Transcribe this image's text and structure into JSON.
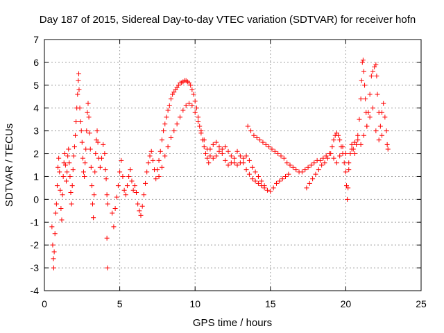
{
  "chart_data": {
    "type": "scatter",
    "title": "Day 187 of 2015, Sidereal Day-to-day VTEC variation (SDTVAR) for receiver hofn",
    "xlabel": "GPS time / hours",
    "ylabel": "SDTVAR / TECUs",
    "xlim": [
      0,
      25
    ],
    "ylim": [
      -4,
      7
    ],
    "xticks": [
      0,
      5,
      10,
      15,
      20,
      25
    ],
    "yticks": [
      -4,
      -3,
      -2,
      -1,
      0,
      1,
      2,
      3,
      4,
      5,
      6,
      7
    ],
    "grid": true,
    "marker": "+",
    "color": "#ff0000",
    "series": [
      {
        "name": "SDTVAR",
        "points": [
          [
            0.5,
            -1.2
          ],
          [
            0.55,
            -2.0
          ],
          [
            0.6,
            -2.6
          ],
          [
            0.62,
            -3.0
          ],
          [
            0.65,
            -2.3
          ],
          [
            0.7,
            -1.5
          ],
          [
            0.75,
            -0.6
          ],
          [
            0.8,
            -0.2
          ],
          [
            0.85,
            0.6
          ],
          [
            0.9,
            1.4
          ],
          [
            0.95,
            1.8
          ],
          [
            1.0,
            1.2
          ],
          [
            1.05,
            0.4
          ],
          [
            1.1,
            -0.4
          ],
          [
            1.15,
            -0.9
          ],
          [
            1.2,
            0.2
          ],
          [
            1.25,
            1.0
          ],
          [
            1.3,
            1.6
          ],
          [
            1.35,
            2.0
          ],
          [
            1.4,
            1.5
          ],
          [
            1.45,
            0.8
          ],
          [
            1.5,
            1.2
          ],
          [
            1.55,
            1.9
          ],
          [
            1.6,
            2.2
          ],
          [
            1.65,
            1.6
          ],
          [
            1.7,
            1.0
          ],
          [
            1.75,
            0.3
          ],
          [
            1.8,
            -0.2
          ],
          [
            1.85,
            0.6
          ],
          [
            1.9,
            1.3
          ],
          [
            1.95,
            1.9
          ],
          [
            2.0,
            2.3
          ],
          [
            2.05,
            2.8
          ],
          [
            2.1,
            3.4
          ],
          [
            2.15,
            4.0
          ],
          [
            2.2,
            4.6
          ],
          [
            2.25,
            5.2
          ],
          [
            2.28,
            5.5
          ],
          [
            2.3,
            4.8
          ],
          [
            2.35,
            4.0
          ],
          [
            2.4,
            3.4
          ],
          [
            2.45,
            3.0
          ],
          [
            2.5,
            2.5
          ],
          [
            2.55,
            1.8
          ],
          [
            2.6,
            1.2
          ],
          [
            2.65,
            1.0
          ],
          [
            2.7,
            1.6
          ],
          [
            2.75,
            2.2
          ],
          [
            2.8,
            3.0
          ],
          [
            2.85,
            3.8
          ],
          [
            2.9,
            4.2
          ],
          [
            2.95,
            3.6
          ],
          [
            3.0,
            2.9
          ],
          [
            3.05,
            2.2
          ],
          [
            3.1,
            1.4
          ],
          [
            3.15,
            0.6
          ],
          [
            3.2,
            -0.2
          ],
          [
            3.25,
            -0.8
          ],
          [
            3.3,
            0.2
          ],
          [
            3.35,
            1.2
          ],
          [
            3.4,
            2.0
          ],
          [
            3.45,
            2.6
          ],
          [
            3.5,
            3.0
          ],
          [
            3.55,
            2.5
          ],
          [
            3.6,
            1.8
          ],
          [
            3.7,
            1.4
          ],
          [
            3.8,
            1.8
          ],
          [
            3.9,
            2.4
          ],
          [
            4.0,
            2.0
          ],
          [
            4.05,
            1.3
          ],
          [
            4.1,
            0.9
          ],
          [
            4.15,
            0.2
          ],
          [
            4.2,
            -0.2
          ],
          [
            4.15,
            -1.7
          ],
          [
            4.18,
            -3.0
          ],
          [
            4.5,
            -0.6
          ],
          [
            4.6,
            -1.2
          ],
          [
            4.7,
            -0.4
          ],
          [
            4.8,
            0.1
          ],
          [
            4.9,
            0.6
          ],
          [
            5.0,
            1.2
          ],
          [
            5.1,
            1.7
          ],
          [
            5.2,
            1.0
          ],
          [
            5.3,
            0.4
          ],
          [
            5.4,
            0.2
          ],
          [
            5.5,
            0.6
          ],
          [
            5.6,
            1.0
          ],
          [
            5.7,
            1.3
          ],
          [
            5.8,
            0.8
          ],
          [
            5.9,
            0.4
          ],
          [
            6.0,
            0.6
          ],
          [
            6.1,
            0.3
          ],
          [
            6.2,
            -0.2
          ],
          [
            6.3,
            -0.5
          ],
          [
            6.4,
            -0.7
          ],
          [
            6.5,
            -0.3
          ],
          [
            6.6,
            0.2
          ],
          [
            6.7,
            0.7
          ],
          [
            6.8,
            1.2
          ],
          [
            6.9,
            1.6
          ],
          [
            7.0,
            1.9
          ],
          [
            7.1,
            2.1
          ],
          [
            7.2,
            1.7
          ],
          [
            7.3,
            1.3
          ],
          [
            7.4,
            0.9
          ],
          [
            7.5,
            1.3
          ],
          [
            7.6,
            1.7
          ],
          [
            7.7,
            2.1
          ],
          [
            7.8,
            2.6
          ],
          [
            7.9,
            3.0
          ],
          [
            8.0,
            3.3
          ],
          [
            8.1,
            3.6
          ],
          [
            8.2,
            3.9
          ],
          [
            8.3,
            4.1
          ],
          [
            8.4,
            4.4
          ],
          [
            8.5,
            4.6
          ],
          [
            8.6,
            4.7
          ],
          [
            8.7,
            4.8
          ],
          [
            8.8,
            4.9
          ],
          [
            8.9,
            5.0
          ],
          [
            9.0,
            5.1
          ],
          [
            9.1,
            5.1
          ],
          [
            9.2,
            5.15
          ],
          [
            9.3,
            5.2
          ],
          [
            9.4,
            5.2
          ],
          [
            9.5,
            5.15
          ],
          [
            9.6,
            5.1
          ],
          [
            9.7,
            5.0
          ],
          [
            9.8,
            4.8
          ],
          [
            9.9,
            4.6
          ],
          [
            10.0,
            4.3
          ],
          [
            10.1,
            4.0
          ],
          [
            10.2,
            3.6
          ],
          [
            10.3,
            3.2
          ],
          [
            10.4,
            2.9
          ],
          [
            10.5,
            2.6
          ],
          [
            10.6,
            2.3
          ],
          [
            10.7,
            2.0
          ],
          [
            10.8,
            1.8
          ],
          [
            10.9,
            1.6
          ],
          [
            7.6,
            1.0
          ],
          [
            7.8,
            1.4
          ],
          [
            8.0,
            1.9
          ],
          [
            8.2,
            2.3
          ],
          [
            8.4,
            2.7
          ],
          [
            8.6,
            3.0
          ],
          [
            8.8,
            3.3
          ],
          [
            9.0,
            3.6
          ],
          [
            9.2,
            3.9
          ],
          [
            9.4,
            4.1
          ],
          [
            9.6,
            4.2
          ],
          [
            9.8,
            4.1
          ],
          [
            10.0,
            3.8
          ],
          [
            10.2,
            3.4
          ],
          [
            10.4,
            3.0
          ],
          [
            10.6,
            2.6
          ],
          [
            10.8,
            2.2
          ],
          [
            11.0,
            1.9
          ],
          [
            11.2,
            1.8
          ],
          [
            11.4,
            1.9
          ],
          [
            11.6,
            2.1
          ],
          [
            11.8,
            2.0
          ],
          [
            12.0,
            1.7
          ],
          [
            12.2,
            1.5
          ],
          [
            12.4,
            1.6
          ],
          [
            12.6,
            1.8
          ],
          [
            11.0,
            2.2
          ],
          [
            11.2,
            2.4
          ],
          [
            11.4,
            2.5
          ],
          [
            11.6,
            2.3
          ],
          [
            11.8,
            2.2
          ],
          [
            12.0,
            2.3
          ],
          [
            12.2,
            2.1
          ],
          [
            12.4,
            1.9
          ],
          [
            12.6,
            1.6
          ],
          [
            12.8,
            1.5
          ],
          [
            13.0,
            1.6
          ],
          [
            13.2,
            1.8
          ],
          [
            13.4,
            1.9
          ],
          [
            13.6,
            1.7
          ],
          [
            13.8,
            1.4
          ],
          [
            14.0,
            1.2
          ],
          [
            14.2,
            1.0
          ],
          [
            14.4,
            0.8
          ],
          [
            14.6,
            0.6
          ],
          [
            14.8,
            0.4
          ],
          [
            15.0,
            0.35
          ],
          [
            15.2,
            0.5
          ],
          [
            15.4,
            0.7
          ],
          [
            15.6,
            0.8
          ],
          [
            15.8,
            0.9
          ],
          [
            16.0,
            1.0
          ],
          [
            16.2,
            1.1
          ],
          [
            12.8,
            2.1
          ],
          [
            13.0,
            1.9
          ],
          [
            13.2,
            1.6
          ],
          [
            13.4,
            1.3
          ],
          [
            13.6,
            1.1
          ],
          [
            13.8,
            0.9
          ],
          [
            14.0,
            0.8
          ],
          [
            14.2,
            0.7
          ],
          [
            14.4,
            0.6
          ],
          [
            14.6,
            0.5
          ],
          [
            13.5,
            3.2
          ],
          [
            13.7,
            3.0
          ],
          [
            13.9,
            2.8
          ],
          [
            14.1,
            2.7
          ],
          [
            14.3,
            2.6
          ],
          [
            14.5,
            2.5
          ],
          [
            14.7,
            2.4
          ],
          [
            14.9,
            2.3
          ],
          [
            15.1,
            2.2
          ],
          [
            15.3,
            2.1
          ],
          [
            15.5,
            2.0
          ],
          [
            15.7,
            1.9
          ],
          [
            15.9,
            1.8
          ],
          [
            16.1,
            1.6
          ],
          [
            16.3,
            1.5
          ],
          [
            16.5,
            1.4
          ],
          [
            16.7,
            1.3
          ],
          [
            16.9,
            1.2
          ],
          [
            17.1,
            1.2
          ],
          [
            17.3,
            1.3
          ],
          [
            17.5,
            1.4
          ],
          [
            17.7,
            1.5
          ],
          [
            17.9,
            1.6
          ],
          [
            18.1,
            1.7
          ],
          [
            18.3,
            1.7
          ],
          [
            18.5,
            1.8
          ],
          [
            18.7,
            1.9
          ],
          [
            18.9,
            2.0
          ],
          [
            17.4,
            0.5
          ],
          [
            17.6,
            0.7
          ],
          [
            17.8,
            0.9
          ],
          [
            18.0,
            1.1
          ],
          [
            18.2,
            1.3
          ],
          [
            18.4,
            1.5
          ],
          [
            18.6,
            1.6
          ],
          [
            18.8,
            1.8
          ],
          [
            19.0,
            2.0
          ],
          [
            19.1,
            2.3
          ],
          [
            19.2,
            2.6
          ],
          [
            19.3,
            2.8
          ],
          [
            19.4,
            2.9
          ],
          [
            19.5,
            2.8
          ],
          [
            19.6,
            2.6
          ],
          [
            19.7,
            2.3
          ],
          [
            19.8,
            2.0
          ],
          [
            19.9,
            1.6
          ],
          [
            20.0,
            1.2
          ],
          [
            20.05,
            0.6
          ],
          [
            20.1,
            0.0
          ],
          [
            20.15,
            0.5
          ],
          [
            20.2,
            1.3
          ],
          [
            20.3,
            2.0
          ],
          [
            20.4,
            2.4
          ],
          [
            20.5,
            2.2
          ],
          [
            20.6,
            2.0
          ],
          [
            20.7,
            2.4
          ],
          [
            20.8,
            2.8
          ],
          [
            20.9,
            3.5
          ],
          [
            21.0,
            4.4
          ],
          [
            21.05,
            5.2
          ],
          [
            21.1,
            6.0
          ],
          [
            21.15,
            6.1
          ],
          [
            21.2,
            5.6
          ],
          [
            21.25,
            5.0
          ],
          [
            21.3,
            4.4
          ],
          [
            21.35,
            3.8
          ],
          [
            21.4,
            3.2
          ],
          [
            21.5,
            3.8
          ],
          [
            21.6,
            4.6
          ],
          [
            21.7,
            5.4
          ],
          [
            21.8,
            5.6
          ],
          [
            21.9,
            5.8
          ],
          [
            22.0,
            5.9
          ],
          [
            22.05,
            5.4
          ],
          [
            22.1,
            4.6
          ],
          [
            22.2,
            3.8
          ],
          [
            22.3,
            3.2
          ],
          [
            22.4,
            3.8
          ],
          [
            22.5,
            4.2
          ],
          [
            22.6,
            3.6
          ],
          [
            22.7,
            3.0
          ],
          [
            22.75,
            2.4
          ],
          [
            22.8,
            2.2
          ],
          [
            19.2,
            1.8
          ],
          [
            19.4,
            1.6
          ],
          [
            19.6,
            1.9
          ],
          [
            19.8,
            2.3
          ],
          [
            20.0,
            2.0
          ],
          [
            20.2,
            1.6
          ],
          [
            20.4,
            2.2
          ],
          [
            20.6,
            2.5
          ],
          [
            20.8,
            2.6
          ],
          [
            21.0,
            2.4
          ],
          [
            21.2,
            2.8
          ],
          [
            21.4,
            3.2
          ],
          [
            21.6,
            3.6
          ],
          [
            21.8,
            4.0
          ],
          [
            22.0,
            3.0
          ],
          [
            22.2,
            2.6
          ],
          [
            22.4,
            2.8
          ]
        ]
      }
    ]
  }
}
